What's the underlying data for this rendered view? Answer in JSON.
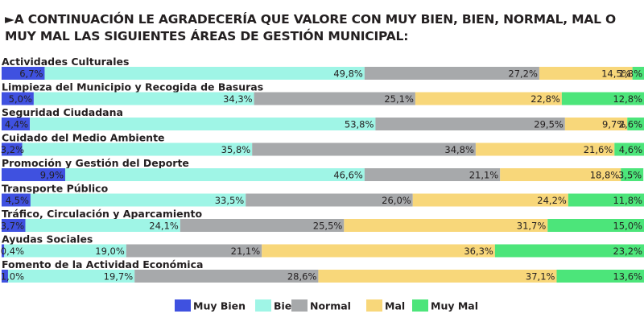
{
  "chart_data": {
    "type": "bar",
    "orientation": "horizontal",
    "stacked": true,
    "title_prefix": "►",
    "title": "A CONTINUACIÓN LE AGRADECERÍA QUE VALORE CON MUY BIEN, BIEN, NORMAL, MAL O MUY MAL LAS SIGUIENTES ÁREAS DE GESTIÓN MUNICIPAL:",
    "categories": [
      "Actividades Culturales",
      "Limpieza del Municipio y Recogida de Basuras",
      "Seguridad Ciudadana",
      "Cuidado del Medio Ambiente",
      "Promoción y Gestión del Deporte",
      "Transporte Público",
      "Tráfico, Circulación y Aparcamiento",
      "Ayudas Sociales",
      "Fomento de la Actividad Económica"
    ],
    "series": [
      {
        "name": "Muy Bien",
        "color": "#3f51e0",
        "values": [
          6.7,
          5.0,
          4.4,
          3.2,
          9.9,
          4.5,
          3.7,
          0.4,
          1.0
        ],
        "labels": [
          "6,7%",
          "5,0%",
          "4,4%",
          "3,2%",
          "9,9%",
          "4,5%",
          "3,7%",
          "0,4%",
          "1,0%"
        ]
      },
      {
        "name": "Bien",
        "color": "#9ff5e6",
        "values": [
          49.8,
          34.3,
          53.8,
          35.8,
          46.6,
          33.5,
          24.1,
          19.0,
          19.7
        ],
        "labels": [
          "49,8%",
          "34,3%",
          "53,8%",
          "35,8%",
          "46,6%",
          "33,5%",
          "24,1%",
          "19,0%",
          "19,7%"
        ]
      },
      {
        "name": "Normal",
        "color": "#a7a9ab",
        "values": [
          27.2,
          25.1,
          29.5,
          34.8,
          21.1,
          26.0,
          25.5,
          21.1,
          28.6
        ],
        "labels": [
          "27,2%",
          "25,1%",
          "29,5%",
          "34,8%",
          "21,1%",
          "26,0%",
          "25,5%",
          "21,1%",
          "28,6%"
        ]
      },
      {
        "name": "Mal",
        "color": "#f8d77a",
        "values": [
          14.5,
          22.8,
          9.7,
          21.6,
          18.8,
          24.2,
          31.7,
          36.3,
          37.1
        ],
        "labels": [
          "14,5%",
          "22,8%",
          "9,7%",
          "21,6%",
          "18,8%",
          "24,2%",
          "31,7%",
          "36,3%",
          "37,1%"
        ]
      },
      {
        "name": "Muy Mal",
        "color": "#4ce57a",
        "values": [
          1.8,
          12.8,
          2.6,
          4.6,
          3.5,
          11.8,
          15.0,
          23.2,
          13.6
        ],
        "labels": [
          "1,8%",
          "12,8%",
          "2,6%",
          "4,6%",
          "3,5%",
          "11,8%",
          "15,0%",
          "23,2%",
          "13,6%"
        ]
      }
    ],
    "xlim": [
      0,
      100
    ],
    "legend_position": "bottom-center",
    "grid": false
  }
}
